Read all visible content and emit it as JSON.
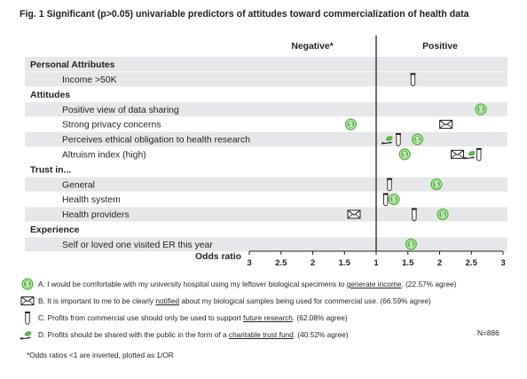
{
  "title": "Fig. 1 Significant (p>0.05) univariable predictors of attitudes toward commercialization of health data",
  "chart_data": {
    "type": "scatter",
    "x_axis_label": "Odds ratio",
    "x_ticks": [
      "3",
      "2.5",
      "2",
      "1.5",
      "1",
      "1.5",
      "2",
      "2.5",
      "3"
    ],
    "x_tick_values": [
      -3,
      -2.5,
      -2,
      -1.5,
      1,
      1.5,
      2,
      2.5,
      3
    ],
    "x_range": [
      -3,
      3
    ],
    "side_labels": {
      "negative": "Negative*",
      "positive": "Positive"
    },
    "grid": false,
    "rows": [
      {
        "label": "Personal Attributes",
        "kind": "header",
        "shaded": true
      },
      {
        "label": "Income >50K",
        "kind": "item",
        "shaded": true,
        "points": [
          {
            "symbol": "C",
            "or": 1.58
          }
        ]
      },
      {
        "label": "Attitudes",
        "kind": "header",
        "shaded": false
      },
      {
        "label": "Positive view of data sharing",
        "kind": "item",
        "shaded": true,
        "points": [
          {
            "symbol": "A",
            "or": 2.65
          }
        ]
      },
      {
        "label": "Strong privacy concerns",
        "kind": "item",
        "shaded": false,
        "points": [
          {
            "symbol": "A",
            "or": -1.4
          },
          {
            "symbol": "B",
            "or": 2.1
          }
        ]
      },
      {
        "label": "Perceives ethical obligation to health research",
        "kind": "item",
        "shaded": true,
        "points": [
          {
            "symbol": "D",
            "or": 1.2
          },
          {
            "symbol": "C",
            "or": 1.35
          },
          {
            "symbol": "A",
            "or": 1.65
          }
        ]
      },
      {
        "label": "Altruism index (high)",
        "kind": "item",
        "shaded": false,
        "points": [
          {
            "symbol": "A",
            "or": 1.45
          },
          {
            "symbol": "B",
            "or": 2.28
          },
          {
            "symbol": "D",
            "or": 2.5
          },
          {
            "symbol": "C",
            "or": 2.62
          }
        ]
      },
      {
        "label": "Trust in...",
        "kind": "header",
        "shaded": false
      },
      {
        "label": "General",
        "kind": "item",
        "shaded": true,
        "points": [
          {
            "symbol": "C",
            "or": 1.21
          },
          {
            "symbol": "A",
            "or": 1.95
          }
        ]
      },
      {
        "label": "Health system",
        "kind": "item",
        "shaded": false,
        "points": [
          {
            "symbol": "C",
            "or": 1.15
          },
          {
            "symbol": "A",
            "or": 1.28
          }
        ]
      },
      {
        "label": "Health providers",
        "kind": "item",
        "shaded": true,
        "points": [
          {
            "symbol": "B",
            "or": -1.35
          },
          {
            "symbol": "C",
            "or": 1.6
          },
          {
            "symbol": "A",
            "or": 2.05
          }
        ]
      },
      {
        "label": "Experience",
        "kind": "header",
        "shaded": false
      },
      {
        "label": "Self or loved one visited ER this year",
        "kind": "item",
        "shaded": true,
        "points": [
          {
            "symbol": "A",
            "or": 1.55
          }
        ]
      }
    ],
    "legend": [
      {
        "symbol": "A",
        "icon": "dollar-coin-icon",
        "before": "A. I would be comfortable with my university hospital using my leftover biological specimens to ",
        "underlined": "generate income",
        "after": ". (22.57% agree)"
      },
      {
        "symbol": "B",
        "icon": "envelope-icon",
        "before": "B. It is important to me to be clearly ",
        "underlined": "notified",
        "after": " about my biological samples being used for commercial use. (66.59% agree)"
      },
      {
        "symbol": "C",
        "icon": "test-tube-icon",
        "before": "C. Profits from commercial use should only be used to support ",
        "underlined": "future research",
        "after": ". (62.08% agree)"
      },
      {
        "symbol": "D",
        "icon": "hand-coin-icon",
        "before": "D. Profits should be shared with the public in the form of a ",
        "underlined": "charitable trust fund",
        "after": ". (40.52% agree)"
      }
    ],
    "n_label": "N=886",
    "footnote": "*Odds ratios <1 are inverted, plotted as 1/OR",
    "colors": {
      "coin": "#5cb947",
      "shade": "#e6e7e8",
      "ink": "#231f20"
    }
  }
}
